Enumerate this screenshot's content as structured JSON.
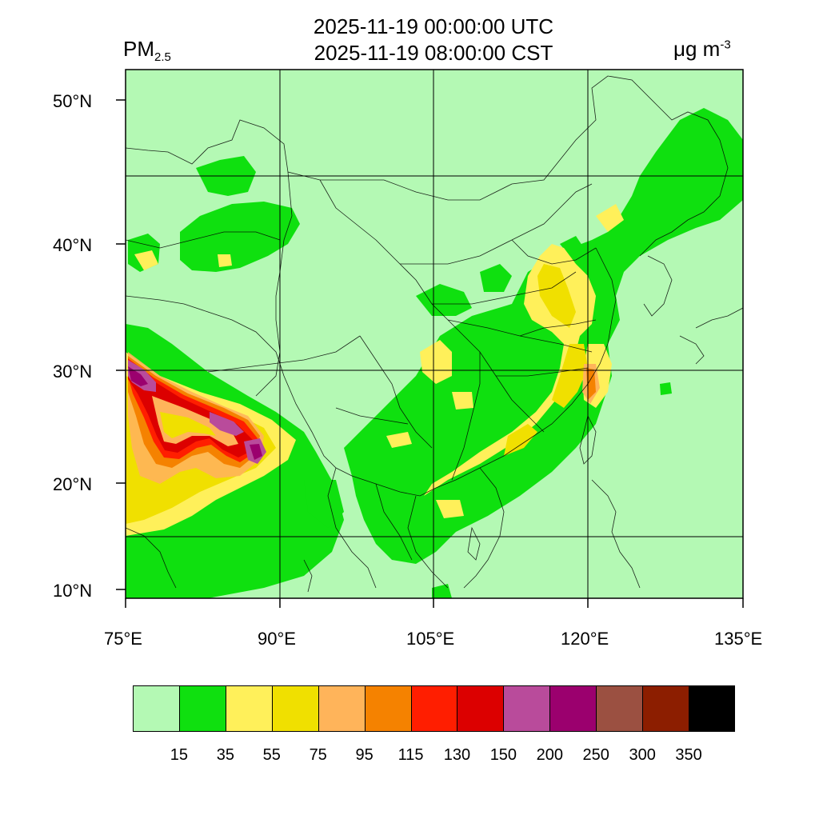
{
  "header": {
    "title_utc": "2025-11-19 00:00:00 UTC",
    "title_cst": "2025-11-19 08:00:00 CST",
    "variable": "PM",
    "variable_sub": "2.5",
    "units": "μg m",
    "units_sup": "-3"
  },
  "axes": {
    "lon_ticks": [
      "75°E",
      "90°E",
      "105°E",
      "120°E",
      "135°E"
    ],
    "lat_ticks": [
      "50°N",
      "40°N",
      "30°N",
      "20°N",
      "10°N"
    ]
  },
  "colorbar": {
    "colors": [
      "#b4f9b4",
      "#0fe00f",
      "#fff05a",
      "#f0e000",
      "#ffb45a",
      "#f58200",
      "#ff1e00",
      "#dc0000",
      "#b94b9b",
      "#9b006e",
      "#9b5041",
      "#8c1e00",
      "#000000"
    ],
    "labels": [
      "15",
      "35",
      "55",
      "75",
      "95",
      "115",
      "130",
      "150",
      "200",
      "250",
      "300",
      "350"
    ]
  }
}
